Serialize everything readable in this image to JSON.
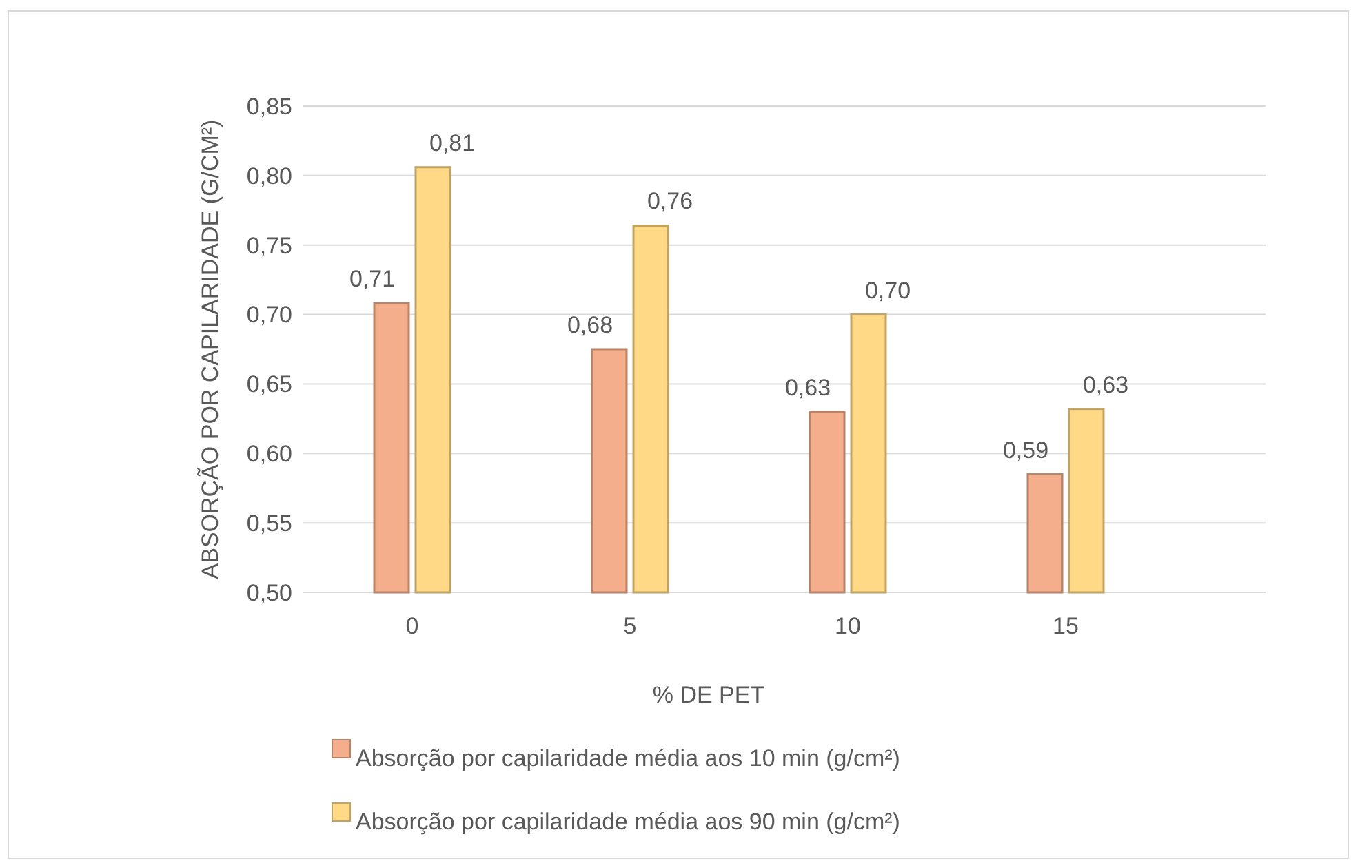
{
  "chart_data": {
    "type": "bar",
    "xlabel": "% DE PET",
    "ylabel": "ABSORÇÃO POR CAPILARIDADE (G/CM²)",
    "categories": [
      "0",
      "5",
      "10",
      "15"
    ],
    "series": [
      {
        "name": "Absorção por capilaridade média aos 10 min (g/cm²)",
        "color": "#f5ae8c",
        "values": [
          0.708,
          0.675,
          0.63,
          0.585
        ],
        "value_labels": [
          "0,71",
          "0,68",
          "0,63",
          "0,59"
        ]
      },
      {
        "name": "Absorção por capilaridade média aos 90 min (g/cm²)",
        "color": "#ffd986",
        "values": [
          0.806,
          0.764,
          0.7,
          0.632
        ],
        "value_labels": [
          "0,81",
          "0,76",
          "0,70",
          "0,63"
        ]
      }
    ],
    "ylim": [
      0.5,
      0.85
    ],
    "yticks": [
      {
        "value": 0.5,
        "label": "0,50"
      },
      {
        "value": 0.55,
        "label": "0,55"
      },
      {
        "value": 0.6,
        "label": "0,60"
      },
      {
        "value": 0.65,
        "label": "0,65"
      },
      {
        "value": 0.7,
        "label": "0,70"
      },
      {
        "value": 0.75,
        "label": "0,75"
      },
      {
        "value": 0.8,
        "label": "0,80"
      },
      {
        "value": 0.85,
        "label": "0,85"
      }
    ],
    "grid": "y",
    "legend": "bottom"
  }
}
